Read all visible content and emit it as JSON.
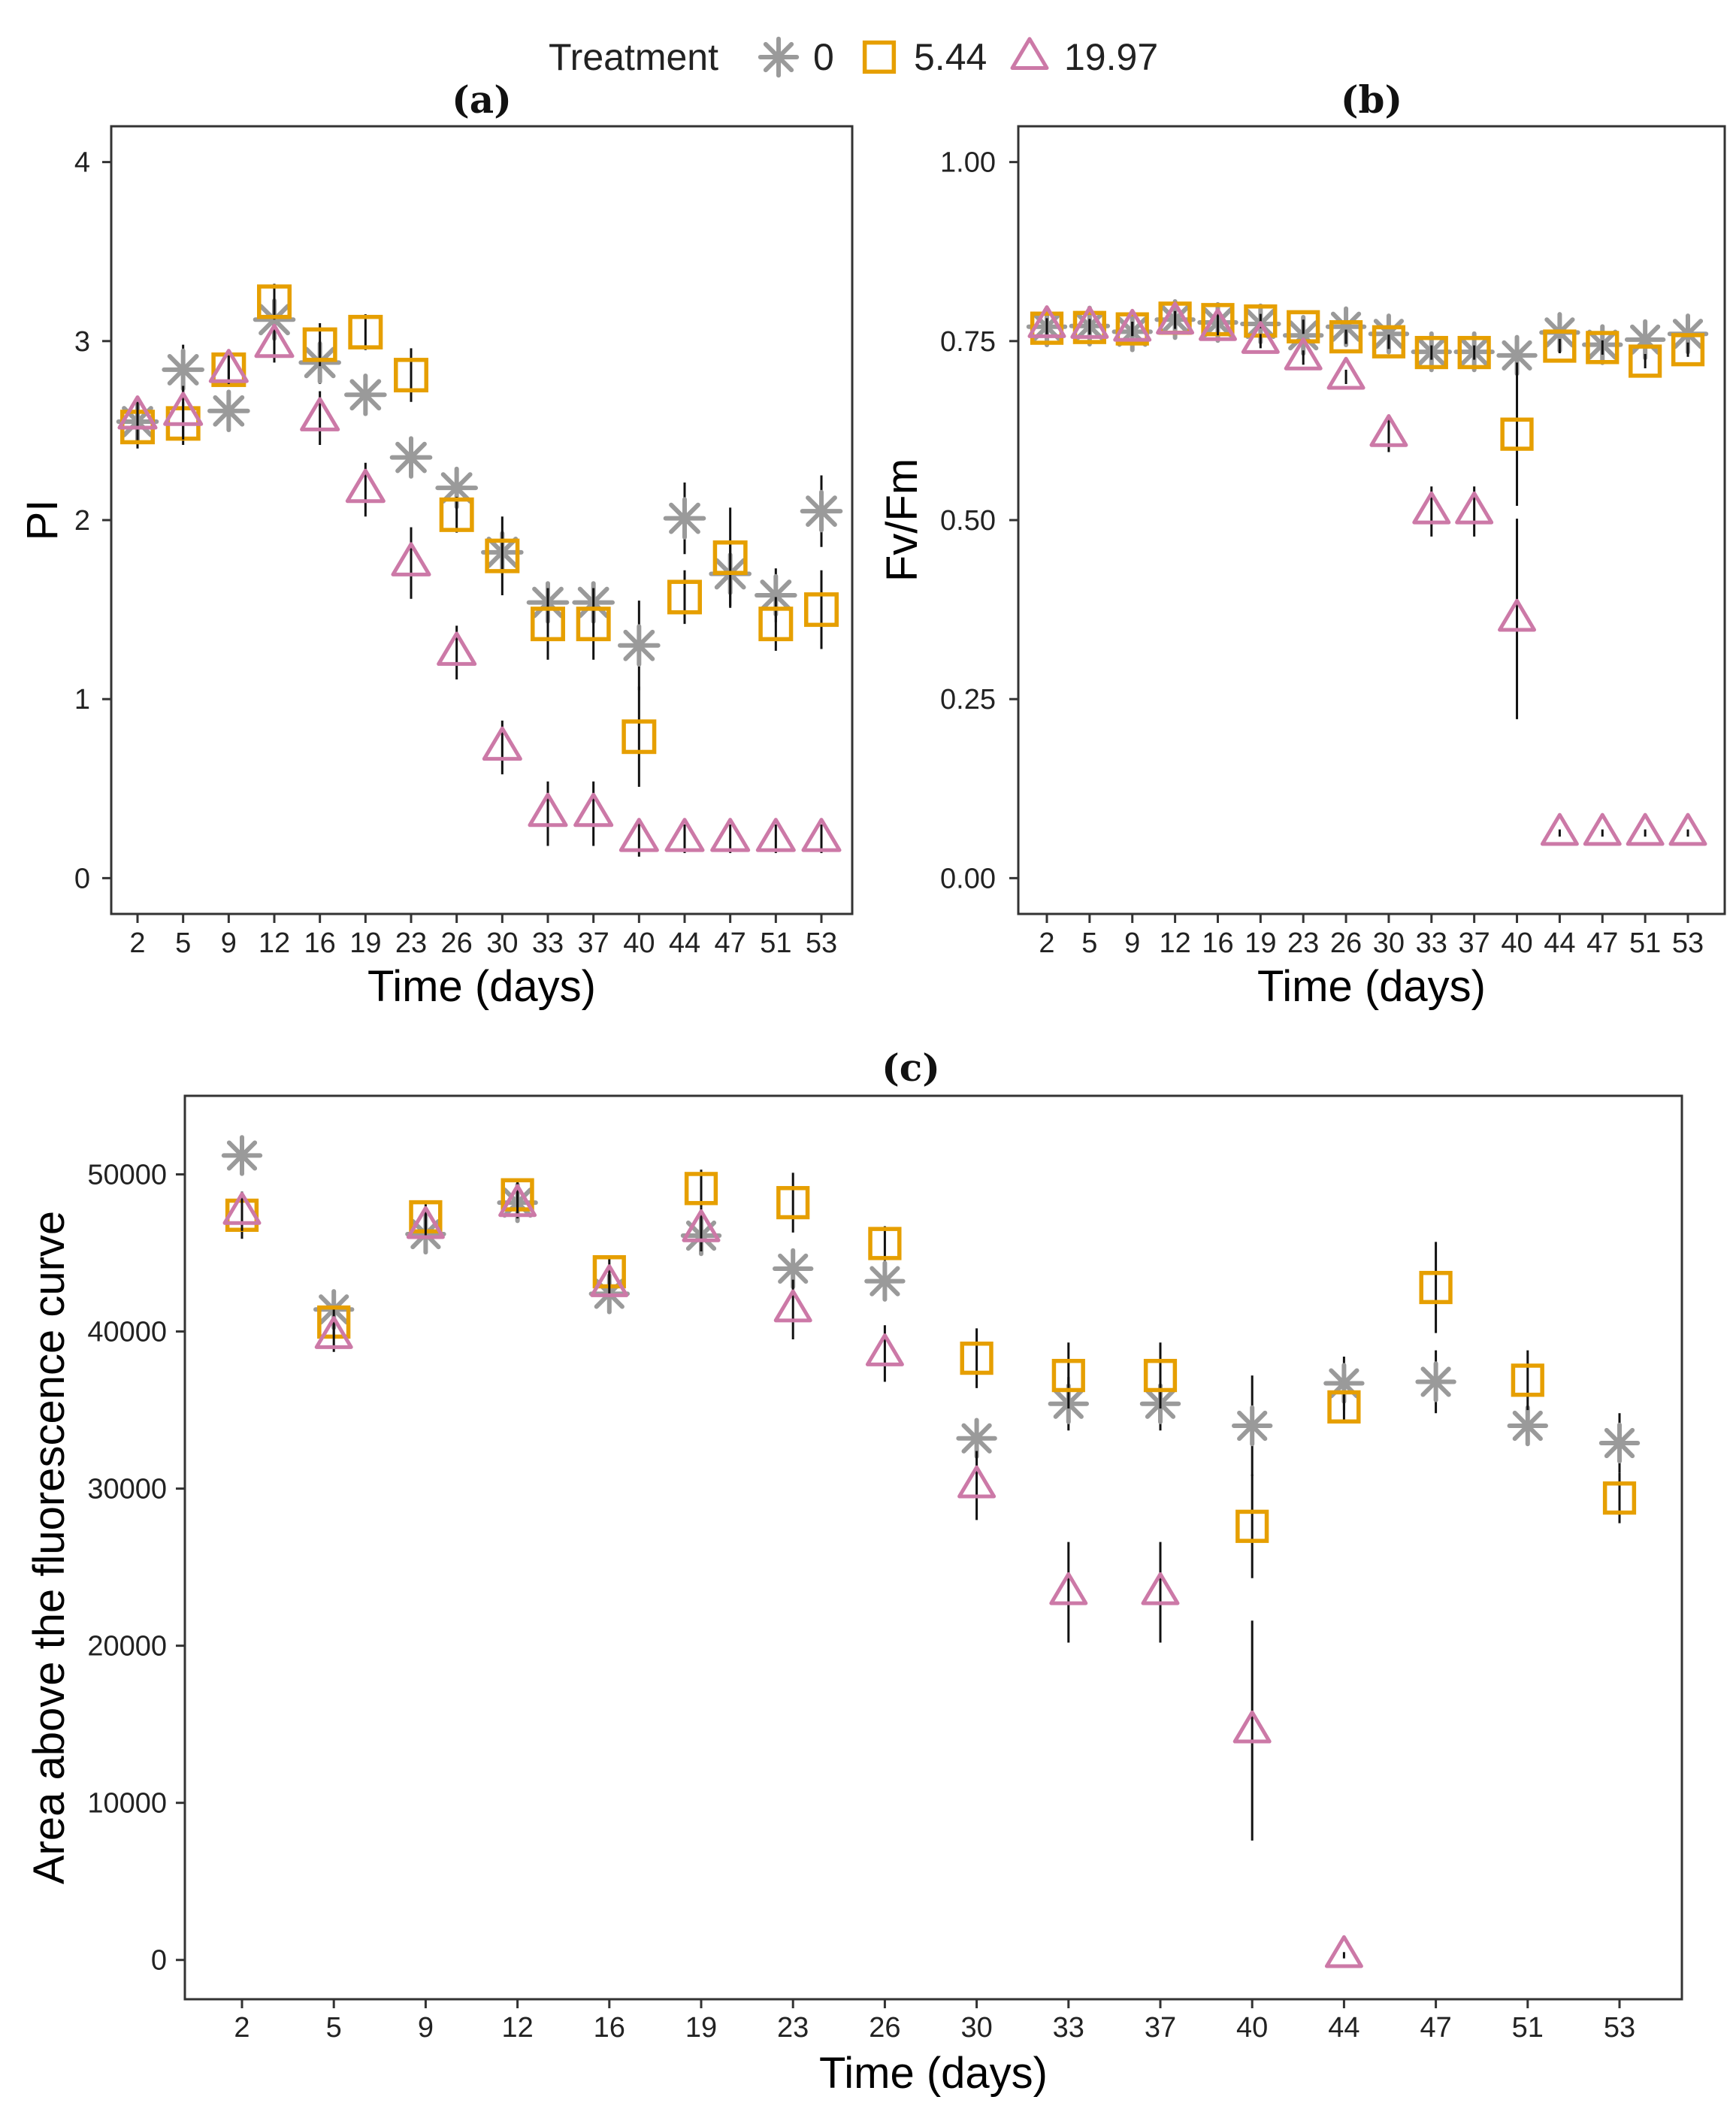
{
  "legend": {
    "title": "Treatment",
    "items": [
      {
        "label": "0",
        "marker": "asterisk",
        "color": "#9a9a9a"
      },
      {
        "label": "5.44",
        "marker": "square",
        "color": "#E69F00"
      },
      {
        "label": "19.97",
        "marker": "triangle",
        "color": "#CC79A7"
      }
    ]
  },
  "chart_data": [
    {
      "id": "a",
      "type": "scatter",
      "title": "(a)",
      "xlabel": "Time (days)",
      "ylabel": "PI",
      "categories": [
        "2",
        "5",
        "9",
        "12",
        "16",
        "19",
        "23",
        "26",
        "30",
        "33",
        "37",
        "40",
        "44",
        "47",
        "51",
        "53"
      ],
      "ylim": [
        -0.2,
        4.2
      ],
      "yticks": [
        0,
        1,
        2,
        3,
        4
      ],
      "ytick_labels": [
        "0",
        "1",
        "2",
        "3",
        "4"
      ],
      "series": [
        {
          "name": "0",
          "values": [
            2.55,
            2.84,
            2.61,
            3.12,
            2.88,
            2.7,
            2.35,
            2.18,
            1.82,
            1.54,
            1.54,
            1.3,
            2.01,
            1.7,
            1.58,
            2.05
          ],
          "err": [
            0.1,
            0.14,
            0.05,
            0.1,
            0.12,
            0.1,
            0.1,
            0.08,
            0.12,
            0.1,
            0.1,
            0.25,
            0.2,
            0.18,
            0.15,
            0.2
          ]
        },
        {
          "name": "5.44",
          "values": [
            2.52,
            2.54,
            2.84,
            3.22,
            2.98,
            3.05,
            2.81,
            2.03,
            1.8,
            1.42,
            1.42,
            0.79,
            1.57,
            1.79,
            1.42,
            1.5
          ],
          "err": [
            0.12,
            0.12,
            0.08,
            0.1,
            0.12,
            0.1,
            0.15,
            0.1,
            0.22,
            0.2,
            0.2,
            0.28,
            0.15,
            0.28,
            0.15,
            0.22
          ]
        },
        {
          "name": "19.97",
          "values": [
            2.58,
            2.6,
            2.84,
            2.98,
            2.57,
            2.17,
            1.76,
            1.26,
            0.73,
            0.36,
            0.36,
            0.22,
            0.22,
            0.22,
            0.22,
            0.22
          ],
          "err": [
            0.08,
            0.15,
            0.08,
            0.1,
            0.15,
            0.15,
            0.2,
            0.15,
            0.15,
            0.18,
            0.18,
            0.1,
            0.08,
            0.08,
            0.08,
            0.08
          ]
        }
      ]
    },
    {
      "id": "b",
      "type": "scatter",
      "title": "(b)",
      "xlabel": "Time (days)",
      "ylabel": "Fv/Fm",
      "categories": [
        "2",
        "5",
        "9",
        "12",
        "16",
        "19",
        "23",
        "26",
        "30",
        "33",
        "37",
        "40",
        "44",
        "47",
        "51",
        "53"
      ],
      "ylim": [
        -0.05,
        1.05
      ],
      "yticks": [
        0,
        0.25,
        0.5,
        0.75,
        1.0
      ],
      "ytick_labels": [
        "0.00",
        "0.25",
        "0.50",
        "0.75",
        "1.00"
      ],
      "series": [
        {
          "name": "0",
          "values": [
            0.77,
            0.771,
            0.763,
            0.78,
            0.776,
            0.774,
            0.758,
            0.77,
            0.76,
            0.735,
            0.735,
            0.73,
            0.762,
            0.745,
            0.752,
            0.76
          ],
          "err": [
            0.01,
            0.01,
            0.01,
            0.01,
            0.01,
            0.01,
            0.01,
            0.01,
            0.01,
            0.01,
            0.01,
            0.02,
            0.01,
            0.01,
            0.01,
            0.01
          ]
        },
        {
          "name": "5.44",
          "values": [
            0.768,
            0.769,
            0.767,
            0.782,
            0.78,
            0.778,
            0.77,
            0.756,
            0.749,
            0.734,
            0.734,
            0.62,
            0.743,
            0.741,
            0.722,
            0.738
          ],
          "err": [
            0.01,
            0.01,
            0.01,
            0.01,
            0.01,
            0.01,
            0.01,
            0.01,
            0.01,
            0.01,
            0.01,
            0.1,
            0.01,
            0.01,
            0.01,
            0.01
          ]
        },
        {
          "name": "19.97",
          "values": [
            0.772,
            0.771,
            0.767,
            0.777,
            0.768,
            0.75,
            0.727,
            0.7,
            0.62,
            0.512,
            0.512,
            0.362,
            0.063,
            0.063,
            0.063,
            0.063
          ],
          "err": [
            0.01,
            0.01,
            0.01,
            0.01,
            0.01,
            0.01,
            0.01,
            0.01,
            0.025,
            0.035,
            0.035,
            0.14,
            0.005,
            0.005,
            0.005,
            0.005
          ]
        }
      ]
    },
    {
      "id": "c",
      "type": "scatter",
      "title": "(c)",
      "xlabel": "Time (days)",
      "ylabel": "Area above the fluorescence curve",
      "categories": [
        "2",
        "5",
        "9",
        "12",
        "16",
        "19",
        "23",
        "26",
        "30",
        "33",
        "37",
        "40",
        "44",
        "47",
        "51",
        "53"
      ],
      "ylim": [
        -2500,
        55000
      ],
      "yticks": [
        0,
        10000,
        20000,
        30000,
        40000,
        50000
      ],
      "ytick_labels": [
        "0",
        "10000",
        "20000",
        "30000",
        "40000",
        "50000"
      ],
      "series": [
        {
          "name": "0",
          "values": [
            51200,
            41400,
            46200,
            48200,
            42400,
            46100,
            44000,
            43200,
            33200,
            35400,
            35400,
            34000,
            36700,
            36800,
            34000,
            32900
          ],
          "err": [
            1100,
            900,
            800,
            900,
            800,
            900,
            1200,
            1200,
            1200,
            1700,
            1700,
            3200,
            1700,
            2000,
            1000,
            1900
          ]
        },
        {
          "name": "5.44",
          "values": [
            47400,
            40600,
            47300,
            48700,
            43800,
            49100,
            48200,
            45600,
            38300,
            37200,
            37200,
            27600,
            35200,
            42800,
            36900,
            29400
          ],
          "err": [
            1500,
            900,
            800,
            900,
            900,
            1200,
            1900,
            1100,
            1900,
            2100,
            2100,
            3300,
            1000,
            2900,
            1900,
            1600
          ]
        },
        {
          "name": "19.97",
          "values": [
            47600,
            39700,
            46700,
            48100,
            43000,
            46500,
            41400,
            38600,
            30200,
            23400,
            23400,
            14600,
            300,
            null,
            null,
            null
          ],
          "err": [
            1200,
            1000,
            800,
            900,
            800,
            1400,
            1900,
            1800,
            2200,
            3200,
            3200,
            7000,
            200,
            0,
            0,
            0
          ]
        }
      ]
    }
  ]
}
